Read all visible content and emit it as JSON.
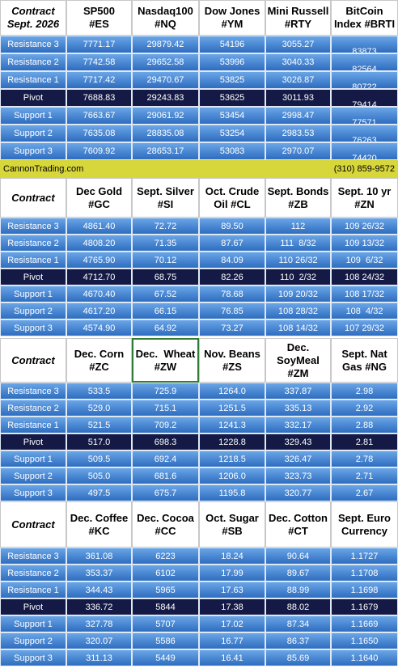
{
  "sections": [
    {
      "header": [
        [
          "Contract",
          "Sept. 2026"
        ],
        [
          "SP500",
          "#ES"
        ],
        [
          "Nasdaq100",
          "#NQ"
        ],
        [
          "Dow Jones",
          "#YM"
        ],
        [
          "Mini Russell",
          "#RTY"
        ],
        [
          "BitCoin",
          "Index #BRTI"
        ]
      ],
      "rows": [
        {
          "label": "Resistance 3",
          "values": [
            "7771.17",
            "29879.42",
            "54196",
            "3055.27",
            "83873"
          ]
        },
        {
          "label": "Resistance 2",
          "values": [
            "7742.58",
            "29652.58",
            "53996",
            "3040.33",
            "82564"
          ]
        },
        {
          "label": "Resistance 1",
          "values": [
            "7717.42",
            "29470.67",
            "53825",
            "3026.87",
            "80722"
          ]
        },
        {
          "label": "Pivot",
          "values": [
            "7688.83",
            "29243.83",
            "53625",
            "3011.93",
            "79414"
          ]
        },
        {
          "label": "Support 1",
          "values": [
            "7663.67",
            "29061.92",
            "53454",
            "2998.47",
            "77571"
          ]
        },
        {
          "label": "Support 2",
          "values": [
            "7635.08",
            "28835.08",
            "53254",
            "2983.53",
            "76263"
          ]
        },
        {
          "label": "Support 3",
          "values": [
            "7609.92",
            "28653.17",
            "53083",
            "2970.07",
            "74420"
          ]
        }
      ]
    },
    {
      "header": [
        [
          "Contract"
        ],
        [
          "Dec Gold",
          "#GC"
        ],
        [
          "Sept. Silver",
          "#SI"
        ],
        [
          "Oct. Crude",
          "Oil #CL"
        ],
        [
          "Sept. Bonds",
          "#ZB"
        ],
        [
          "Sept. 10 yr",
          "#ZN"
        ]
      ],
      "rows": [
        {
          "label": "Resistance 3",
          "values": [
            "4861.40",
            "72.72",
            "89.50",
            "112",
            "109 26/32"
          ]
        },
        {
          "label": "Resistance 2",
          "values": [
            "4808.20",
            "71.35",
            "87.67",
            "111  8/32",
            "109 13/32"
          ]
        },
        {
          "label": "Resistance 1",
          "values": [
            "4765.90",
            "70.12",
            "84.09",
            "110 26/32",
            "109  6/32"
          ]
        },
        {
          "label": "Pivot",
          "values": [
            "4712.70",
            "68.75",
            "82.26",
            "110  2/32",
            "108 24/32"
          ]
        },
        {
          "label": "Support 1",
          "values": [
            "4670.40",
            "67.52",
            "78.68",
            "109 20/32",
            "108 17/32"
          ]
        },
        {
          "label": "Support 2",
          "values": [
            "4617.20",
            "66.15",
            "76.85",
            "108 28/32",
            "108  4/32"
          ]
        },
        {
          "label": "Support 3",
          "values": [
            "4574.90",
            "64.92",
            "73.27",
            "108 14/32",
            "107 29/32"
          ]
        }
      ]
    },
    {
      "header": [
        [
          "Contract"
        ],
        [
          "Dec. Corn",
          "#ZC"
        ],
        [
          "Dec.  Wheat",
          "#ZW"
        ],
        [
          "Nov. Beans",
          "#ZS"
        ],
        [
          "Dec.",
          "SoyMeal",
          "#ZM"
        ],
        [
          "Sept. Nat",
          "Gas #NG"
        ]
      ],
      "rows": [
        {
          "label": "Resistance 3",
          "values": [
            "533.5",
            "725.9",
            "1264.0",
            "337.87",
            "2.98"
          ]
        },
        {
          "label": "Resistance 2",
          "values": [
            "529.0",
            "715.1",
            "1251.5",
            "335.13",
            "2.92"
          ]
        },
        {
          "label": "Resistance 1",
          "values": [
            "521.5",
            "709.2",
            "1241.3",
            "332.17",
            "2.88"
          ]
        },
        {
          "label": "Pivot",
          "values": [
            "517.0",
            "698.3",
            "1228.8",
            "329.43",
            "2.81"
          ]
        },
        {
          "label": "Support 1",
          "values": [
            "509.5",
            "692.4",
            "1218.5",
            "326.47",
            "2.78"
          ]
        },
        {
          "label": "Support 2",
          "values": [
            "505.0",
            "681.6",
            "1206.0",
            "323.73",
            "2.71"
          ]
        },
        {
          "label": "Support 3",
          "values": [
            "497.5",
            "675.7",
            "1195.8",
            "320.77",
            "2.67"
          ]
        }
      ]
    },
    {
      "header": [
        [
          "Contract"
        ],
        [
          "Dec. Coffee",
          "#KC"
        ],
        [
          "Dec. Cocoa",
          "#CC"
        ],
        [
          "Oct. Sugar",
          "#SB"
        ],
        [
          "Dec. Cotton",
          "#CT"
        ],
        [
          "Sept. Euro",
          "Currency"
        ]
      ],
      "rows": [
        {
          "label": "Resistance 3",
          "values": [
            "361.08",
            "6223",
            "18.24",
            "90.64",
            "1.1727"
          ]
        },
        {
          "label": "Resistance 2",
          "values": [
            "353.37",
            "6102",
            "17.99",
            "89.67",
            "1.1708"
          ]
        },
        {
          "label": "Resistance 1",
          "values": [
            "344.43",
            "5965",
            "17.63",
            "88.99",
            "1.1698"
          ]
        },
        {
          "label": "Pivot",
          "values": [
            "336.72",
            "5844",
            "17.38",
            "88.02",
            "1.1679"
          ]
        },
        {
          "label": "Support 1",
          "values": [
            "327.78",
            "5707",
            "17.02",
            "87.34",
            "1.1669"
          ]
        },
        {
          "label": "Support 2",
          "values": [
            "320.07",
            "5586",
            "16.77",
            "86.37",
            "1.1650"
          ]
        },
        {
          "label": "Support 3",
          "values": [
            "311.13",
            "5449",
            "16.41",
            "85.69",
            "1.1640"
          ]
        }
      ]
    }
  ],
  "footer": {
    "site": "CannonTrading.com",
    "phone": "(310) 859-9572"
  }
}
